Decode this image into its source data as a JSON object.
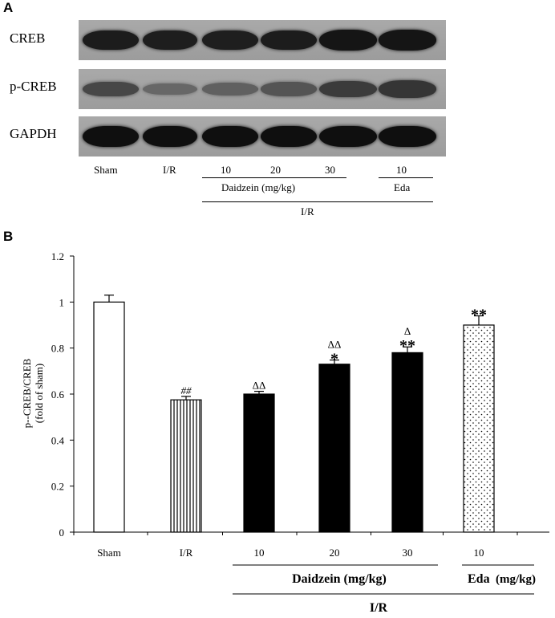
{
  "panels": {
    "a": "A",
    "b": "B"
  },
  "western_blot": {
    "rows": [
      {
        "label": "CREB",
        "intensity": [
          0.9,
          0.88,
          0.88,
          0.9,
          0.95,
          0.95
        ]
      },
      {
        "label": "p-CREB",
        "intensity": [
          0.55,
          0.3,
          0.35,
          0.45,
          0.65,
          0.7
        ]
      },
      {
        "label": "GAPDH",
        "intensity": [
          1,
          1,
          1,
          1,
          1,
          1
        ]
      }
    ],
    "lane_labels": [
      "Sham",
      "I/R",
      "10",
      "20",
      "30",
      "10"
    ],
    "group_labels": {
      "daidzein": "Daidzein (mg/kg)",
      "eda": "Eda",
      "ir": "I/R"
    }
  },
  "chart_data": {
    "type": "bar",
    "categories": [
      "Sham",
      "I/R",
      "10",
      "20",
      "30",
      "10"
    ],
    "values": [
      1.0,
      0.575,
      0.6,
      0.73,
      0.78,
      0.9
    ],
    "errors": [
      0.03,
      0.015,
      0.012,
      0.018,
      0.025,
      0.04
    ],
    "annotations": [
      [
        "",
        ""
      ],
      [
        "",
        "##"
      ],
      [
        "",
        "ΔΔ"
      ],
      [
        "*",
        "ΔΔ"
      ],
      [
        "**",
        "Δ"
      ],
      [
        "**",
        ""
      ]
    ],
    "patterns": [
      "white",
      "vertical-lines",
      "black",
      "black",
      "black",
      "dots"
    ],
    "ylabel_lines": [
      "p--CREB/CREB",
      "(fold of sham)"
    ],
    "xlabel": "",
    "ylim": [
      0,
      1.2
    ],
    "yticks": [
      "0",
      "0.2",
      "0.4",
      "0.6",
      "0.8",
      "1",
      "1.2"
    ],
    "group_labels": {
      "daidzein": "Daidzein (mg/kg)",
      "eda": "Eda",
      "eda_unit": "(mg/kg)",
      "ir": "I/R"
    },
    "grid": false,
    "legend": "none"
  },
  "colors": {
    "bar_solid": "#000000",
    "bar_outline": "#000000",
    "blot_bg": "#a3a3a3",
    "band": "#141414"
  }
}
